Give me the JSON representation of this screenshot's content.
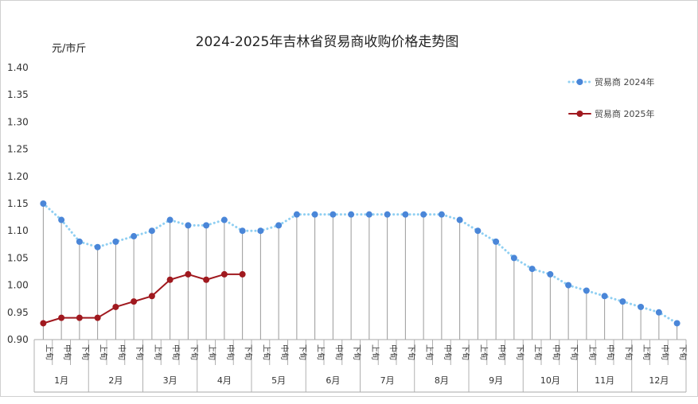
{
  "chart_data": {
    "type": "line",
    "title": "2024-2025年吉林省贸易商收购价格走势图",
    "y_unit": "元/市斤",
    "ylim": [
      0.9,
      1.4
    ],
    "y_ticks": [
      "0.90",
      "0.95",
      "1.00",
      "1.05",
      "1.10",
      "1.15",
      "1.20",
      "1.25",
      "1.30",
      "1.35",
      "1.40"
    ],
    "periods": [
      "上旬",
      "中旬",
      "下旬"
    ],
    "months": [
      "1月",
      "2月",
      "3月",
      "4月",
      "5月",
      "6月",
      "7月",
      "8月",
      "9月",
      "10月",
      "11月",
      "12月"
    ],
    "legend_position": "top-right",
    "series": [
      {
        "name": "贸易商 2024年",
        "color": "#4a86d8",
        "line_color": "#8fcff2",
        "style": "dotted",
        "values": [
          1.15,
          1.12,
          1.08,
          1.07,
          1.08,
          1.09,
          1.1,
          1.12,
          1.11,
          1.11,
          1.12,
          1.1,
          1.1,
          1.11,
          1.13,
          1.13,
          1.13,
          1.13,
          1.13,
          1.13,
          1.13,
          1.13,
          1.13,
          1.12,
          1.1,
          1.08,
          1.05,
          1.03,
          1.02,
          1.0,
          0.99,
          0.98,
          0.97,
          0.96,
          0.95,
          0.93
        ]
      },
      {
        "name": "贸易商 2025年",
        "color": "#a0191f",
        "line_color": "#a0191f",
        "style": "solid",
        "values": [
          0.93,
          0.94,
          0.94,
          0.94,
          0.96,
          0.97,
          0.98,
          1.01,
          1.02,
          1.01,
          1.02,
          1.02
        ]
      }
    ]
  }
}
